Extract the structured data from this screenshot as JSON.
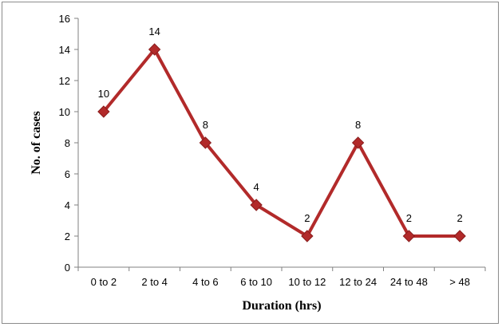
{
  "chart_data": {
    "type": "line",
    "title": "",
    "xlabel": "Duration (hrs)",
    "ylabel": "No. of cases",
    "categories": [
      "0 to 2",
      "2 to 4",
      "4 to 6",
      "6 to 10",
      "10 to 12",
      "12 to 24",
      "24 to 48",
      "> 48"
    ],
    "series": [
      {
        "values": [
          10,
          14,
          8,
          4,
          2,
          8,
          2,
          2
        ]
      }
    ],
    "ylim": [
      0,
      16
    ],
    "yticks": [
      0,
      2,
      4,
      6,
      8,
      10,
      12,
      14,
      16
    ],
    "data_labels": [
      "10",
      "14",
      "8",
      "4",
      "2",
      "8",
      "2",
      "2"
    ],
    "grid": false,
    "legend": "none",
    "line_color": "#b22a2a",
    "marker": "diamond"
  }
}
